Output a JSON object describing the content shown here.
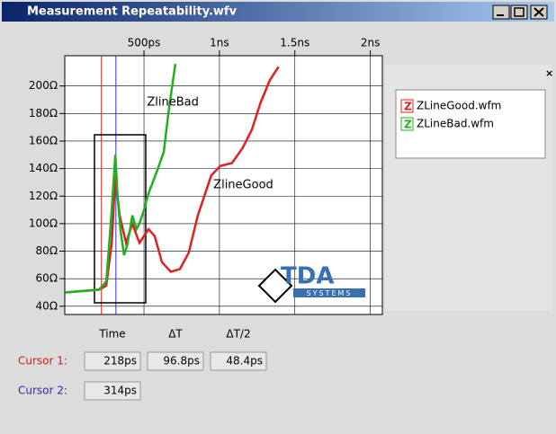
{
  "window": {
    "title": "Measurement Repeatability.wfv"
  },
  "chart_data": {
    "type": "line",
    "xticks": [
      {
        "value": 500,
        "label": "500ps"
      },
      {
        "value": 1000,
        "label": "1ns"
      },
      {
        "value": 1500,
        "label": "1.5ns"
      },
      {
        "value": 2000,
        "label": "2ns"
      }
    ],
    "xlim": [
      -25,
      2080
    ],
    "ylim": [
      34,
      222
    ],
    "yticks": [
      {
        "value": 40,
        "label": "40Ω"
      },
      {
        "value": 60,
        "label": "60Ω"
      },
      {
        "value": 80,
        "label": "80Ω"
      },
      {
        "value": 100,
        "label": "100Ω"
      },
      {
        "value": 120,
        "label": "120Ω"
      },
      {
        "value": 140,
        "label": "140Ω"
      },
      {
        "value": 160,
        "label": "160Ω"
      },
      {
        "value": 180,
        "label": "180Ω"
      },
      {
        "value": 200,
        "label": "200Ω"
      }
    ],
    "grid": true,
    "series": [
      {
        "name": "ZLineGood.wfm",
        "color": "#e02020",
        "x": [
          -24,
          202,
          250,
          286,
          310,
          339,
          381,
          423,
          470,
          530,
          571,
          619,
          678,
          738,
          797,
          857,
          946,
          1006,
          1083,
          1154,
          1214,
          1273,
          1333,
          1392
        ],
        "values": [
          50,
          52,
          55,
          86,
          135,
          106,
          86,
          100,
          86,
          96,
          91,
          72,
          65,
          67,
          79,
          106,
          135,
          142,
          144,
          155,
          168,
          188,
          204,
          214
        ]
      },
      {
        "name": "ZLineBad.wfm",
        "color": "#20b020",
        "x": [
          -24,
          202,
          250,
          280,
          310,
          325,
          345,
          368,
          390,
          423,
          450,
          470,
          500,
          530,
          589,
          631,
          666,
          708
        ],
        "values": [
          50,
          52,
          58,
          100,
          150,
          120,
          95,
          77,
          85,
          106,
          96,
          100,
          110,
          122,
          139,
          152,
          184,
          216
        ]
      }
    ],
    "annotations": [
      {
        "text": "ZlineBad",
        "x": 520,
        "y": 188
      },
      {
        "text": "ZlineGood",
        "x": 960,
        "y": 128
      }
    ],
    "cursors": [
      {
        "value": 218,
        "color": "#d02020"
      },
      {
        "value": 314,
        "color": "#3030c0"
      }
    ],
    "logo": {
      "name": "TDA",
      "sub": "SYSTEMS"
    }
  },
  "cursor_table": {
    "headers": [
      "Time",
      "ΔT",
      "ΔT/2"
    ],
    "rows": [
      {
        "label": "Cursor 1:",
        "color": "#d02020",
        "values": [
          "218ps",
          "96.8ps",
          "48.4ps"
        ]
      },
      {
        "label": "Cursor 2:",
        "color": "#3030a0",
        "values": [
          "314ps"
        ]
      }
    ]
  }
}
